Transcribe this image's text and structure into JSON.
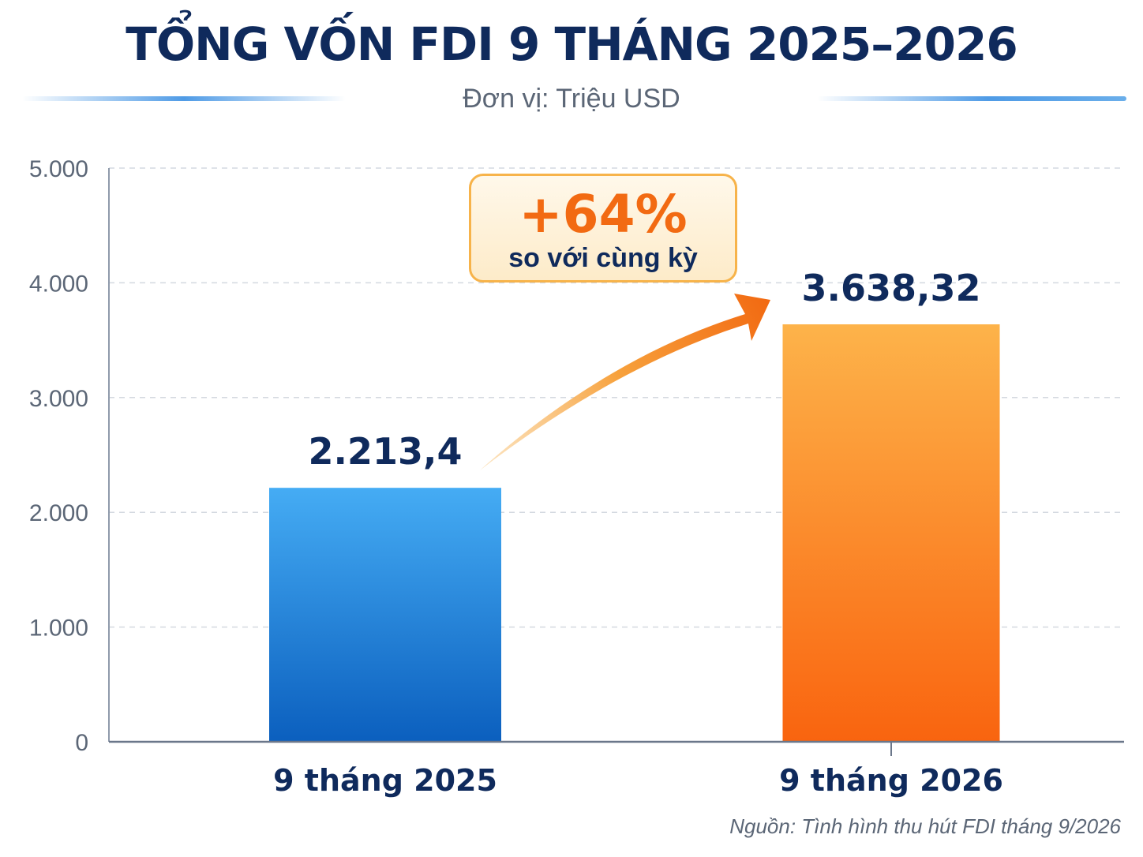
{
  "chart_data": {
    "type": "bar",
    "title": "TỔNG VỐN FDI 9 THÁNG 2025–2026",
    "subtitle": "Đơn vị: Triệu USD",
    "categories": [
      "9 tháng 2025",
      "9 tháng 2026"
    ],
    "values": [
      2213.4,
      3638.32
    ],
    "value_labels": [
      "2.213,4",
      "3.638,32"
    ],
    "bar_colors": [
      "#1c78d0",
      "#f98a1e"
    ],
    "ylim": [
      0,
      5000
    ],
    "yticks": [
      0,
      1000,
      2000,
      3000,
      4000,
      5000
    ],
    "ytick_labels": [
      "0",
      "1.000",
      "2.000",
      "3.000",
      "4.000",
      "5.000"
    ],
    "grid": true,
    "annotation": {
      "value": "+64%",
      "text": "so với cùng kỳ"
    },
    "source": "Nguồn: Tình hình thu hút FDI tháng 9/2026"
  }
}
